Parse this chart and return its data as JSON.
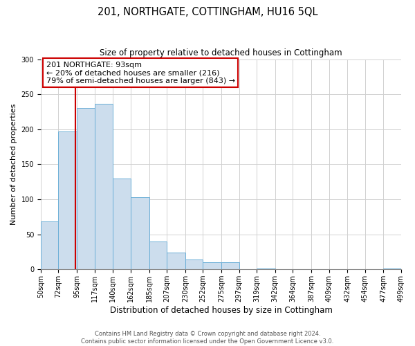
{
  "title": "201, NORTHGATE, COTTINGHAM, HU16 5QL",
  "subtitle": "Size of property relative to detached houses in Cottingham",
  "xlabel": "Distribution of detached houses by size in Cottingham",
  "ylabel": "Number of detached properties",
  "bin_edges": [
    50,
    72,
    95,
    117,
    140,
    162,
    185,
    207,
    230,
    252,
    275,
    297,
    319,
    342,
    364,
    387,
    409,
    432,
    454,
    477,
    499
  ],
  "bar_heights": [
    68,
    197,
    230,
    236,
    130,
    103,
    40,
    24,
    14,
    10,
    10,
    0,
    1,
    0,
    0,
    0,
    0,
    0,
    0,
    1
  ],
  "bar_color": "#ccdded",
  "bar_edge_color": "#6aaed6",
  "property_size": 93,
  "red_line_color": "#cc0000",
  "annotation_text": "201 NORTHGATE: 93sqm\n← 20% of detached houses are smaller (216)\n79% of semi-detached houses are larger (843) →",
  "annotation_box_color": "#ffffff",
  "annotation_box_edge": "#cc0000",
  "ylim": [
    0,
    300
  ],
  "yticks": [
    0,
    50,
    100,
    150,
    200,
    250,
    300
  ],
  "xtick_labels": [
    "50sqm",
    "72sqm",
    "95sqm",
    "117sqm",
    "140sqm",
    "162sqm",
    "185sqm",
    "207sqm",
    "230sqm",
    "252sqm",
    "275sqm",
    "297sqm",
    "319sqm",
    "342sqm",
    "364sqm",
    "387sqm",
    "409sqm",
    "432sqm",
    "454sqm",
    "477sqm",
    "499sqm"
  ],
  "footer_line1": "Contains HM Land Registry data © Crown copyright and database right 2024.",
  "footer_line2": "Contains public sector information licensed under the Open Government Licence v3.0.",
  "grid_color": "#d0d0d0",
  "background_color": "#ffffff",
  "title_fontsize": 10.5,
  "subtitle_fontsize": 8.5,
  "ylabel_fontsize": 8,
  "xlabel_fontsize": 8.5,
  "tick_fontsize": 7,
  "annotation_fontsize": 8,
  "footer_fontsize": 6
}
